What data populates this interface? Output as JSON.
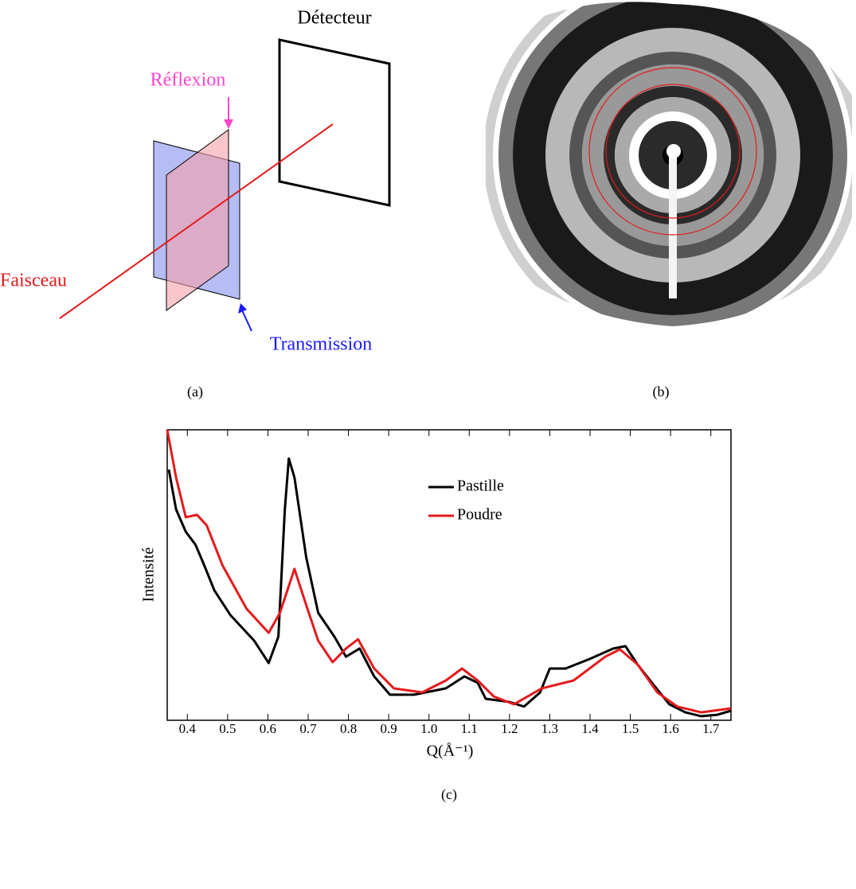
{
  "diagram": {
    "detector": "Détecteur",
    "reflection": "Réflexion",
    "beam": "Faisceau",
    "transmission": "Transmission",
    "caption": "(a)"
  },
  "image": {
    "caption": "(b)"
  },
  "chart_data": {
    "type": "line",
    "caption": "(c)",
    "xlabel": "Q(Å⁻¹)",
    "ylabel": "Intensité",
    "xlim": [
      0.35,
      1.75
    ],
    "ylim": [
      0,
      100
    ],
    "xticks": [
      0.4,
      0.5,
      0.6,
      0.7,
      0.8,
      0.9,
      {
        "value": 1,
        "label": "1.0"
      },
      1.1,
      1.2,
      1.3,
      1.4,
      1.5,
      1.6,
      1.7
    ],
    "series": [
      {
        "name": "Pastille",
        "color": "#000000",
        "x": [
          0.354,
          0.372,
          0.396,
          0.42,
          0.44,
          0.467,
          0.507,
          0.566,
          0.602,
          0.626,
          0.642,
          0.652,
          0.666,
          0.695,
          0.725,
          0.765,
          0.794,
          0.828,
          0.864,
          0.903,
          0.963,
          1.042,
          1.088,
          1.121,
          1.141,
          1.2,
          1.236,
          1.276,
          1.3,
          1.339,
          1.399,
          1.458,
          1.488,
          1.518,
          1.557,
          1.597,
          1.637,
          1.676,
          1.716,
          1.75
        ],
        "values": [
          86.3,
          72.6,
          64.9,
          60.5,
          54.0,
          44.7,
          36.2,
          27.4,
          19.7,
          28.8,
          72.6,
          90.1,
          83.6,
          56.2,
          37.0,
          28.8,
          21.9,
          24.7,
          15.1,
          8.8,
          8.8,
          11.0,
          15.1,
          12.9,
          7.4,
          6.3,
          4.7,
          9.6,
          17.8,
          17.8,
          21.1,
          24.7,
          25.5,
          19.2,
          12.3,
          5.5,
          2.7,
          1.4,
          1.9,
          3.3
        ]
      },
      {
        "name": "Poudre",
        "color": "#e41a1c",
        "x": [
          0.35,
          0.372,
          0.396,
          0.424,
          0.448,
          0.487,
          0.547,
          0.602,
          0.63,
          0.666,
          0.695,
          0.725,
          0.761,
          0.794,
          0.824,
          0.864,
          0.913,
          0.983,
          1.042,
          1.082,
          1.121,
          1.161,
          1.211,
          1.28,
          1.359,
          1.438,
          1.474,
          1.518,
          1.567,
          1.617,
          1.676,
          1.75
        ],
        "values": [
          100,
          83.6,
          69.9,
          70.7,
          67.1,
          53.4,
          38.4,
          30.1,
          37.0,
          52.1,
          39.7,
          27.4,
          20.0,
          24.7,
          27.9,
          17.8,
          11.0,
          9.6,
          13.7,
          17.8,
          13.7,
          8.2,
          5.5,
          11.0,
          13.7,
          21.9,
          24.4,
          19.2,
          9.6,
          4.7,
          2.7,
          4.1
        ]
      }
    ]
  }
}
